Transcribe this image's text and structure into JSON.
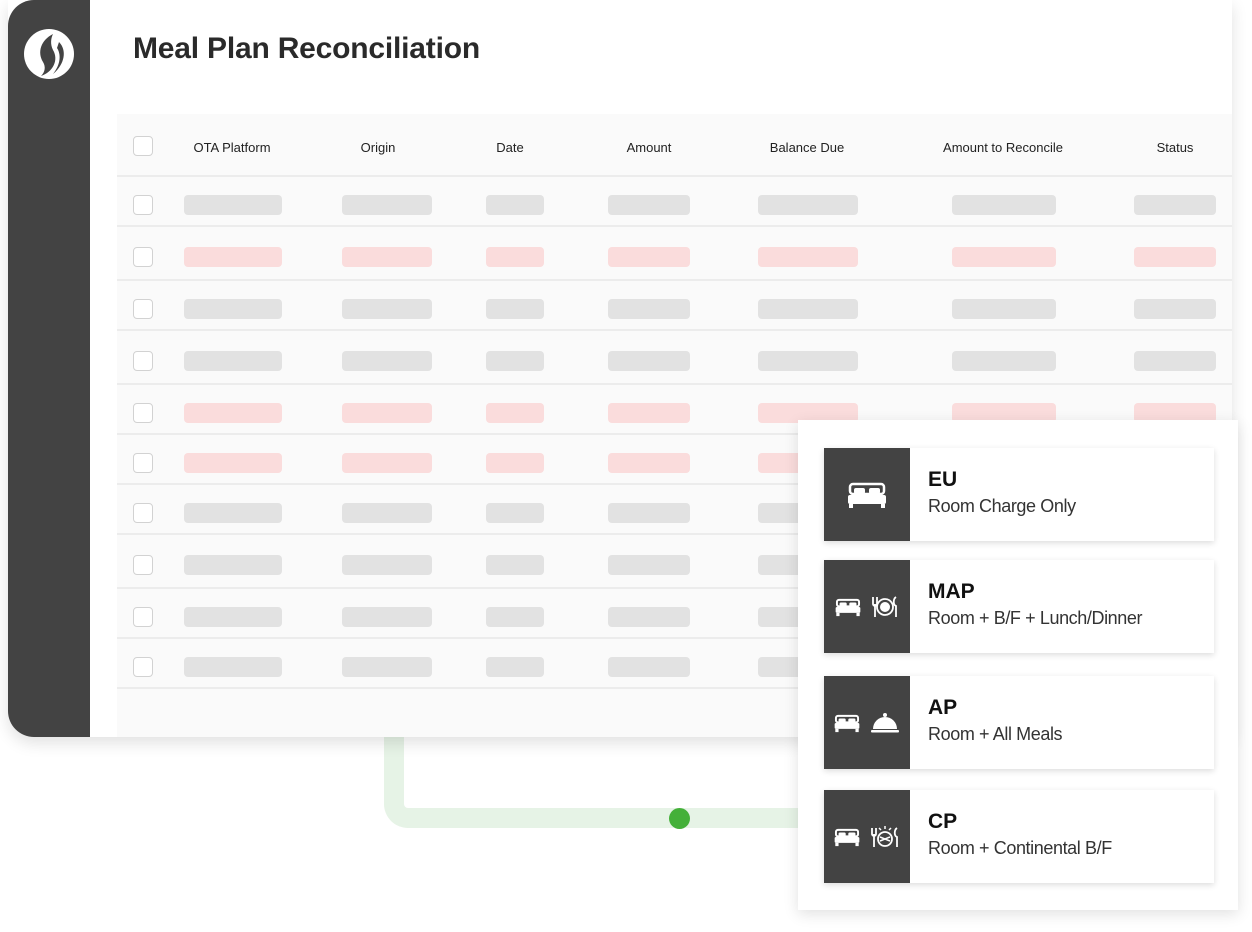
{
  "app": {
    "title": "Meal Plan Reconciliation"
  },
  "table": {
    "columns": [
      "OTA Platform",
      "Origin",
      "Date",
      "Amount",
      "Balance Due",
      "Amount to Reconcile",
      "Status"
    ],
    "rows": [
      {
        "flagged": false
      },
      {
        "flagged": true
      },
      {
        "flagged": false
      },
      {
        "flagged": false
      },
      {
        "flagged": true
      },
      {
        "flagged": true
      },
      {
        "flagged": false
      },
      {
        "flagged": false
      },
      {
        "flagged": false
      },
      {
        "flagged": false
      }
    ]
  },
  "meal_plans": [
    {
      "code": "EU",
      "description": "Room Charge Only",
      "icons": [
        "bed-icon"
      ]
    },
    {
      "code": "MAP",
      "description": "Room + B/F + Lunch/Dinner",
      "icons": [
        "bed-icon",
        "plate-cutlery-icon"
      ]
    },
    {
      "code": "AP",
      "description": "Room + All Meals",
      "icons": [
        "bed-icon",
        "cloche-icon"
      ]
    },
    {
      "code": "CP",
      "description": "Room + Continental B/F",
      "icons": [
        "bed-icon",
        "breakfast-icon"
      ]
    }
  ],
  "colors": {
    "sidebar": "#434343",
    "flagged_row": "#fadcdc",
    "placeholder": "#e2e2e2",
    "connector": "#e6f3e6",
    "connector_dot": "#44b039"
  }
}
